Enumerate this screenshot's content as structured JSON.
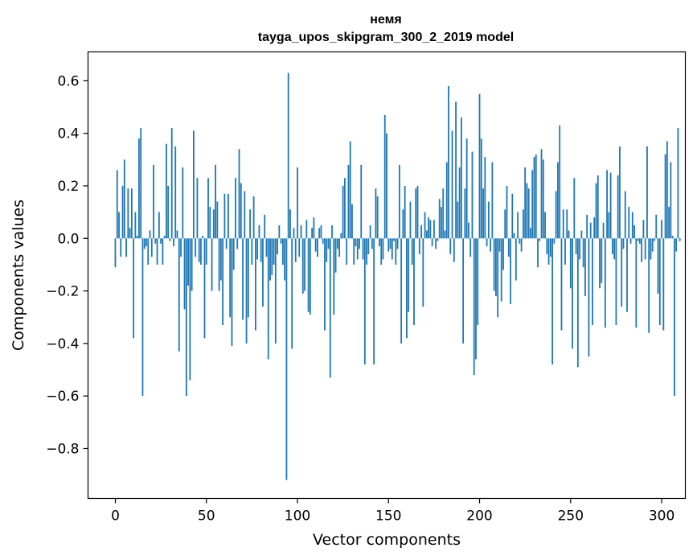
{
  "chart_data": {
    "type": "bar",
    "title_line1": "немя",
    "title_line2": "tayga_upos_skipgram_300_2_2019 model",
    "xlabel": "Vector components",
    "ylabel": "Components values",
    "xlim": [
      -15,
      313
    ],
    "ylim": [
      -0.99,
      0.71
    ],
    "xticks": [
      0,
      50,
      100,
      150,
      200,
      250,
      300
    ],
    "yticks": [
      -0.8,
      -0.6,
      -0.4,
      -0.2,
      0.0,
      0.2,
      0.4,
      0.6
    ],
    "ytick_labels": [
      "−0.8",
      "−0.6",
      "−0.4",
      "−0.2",
      "0.0",
      "0.2",
      "0.4",
      "0.6"
    ],
    "bar_color": "#1f77b4",
    "values": [
      -0.11,
      0.26,
      0.1,
      -0.07,
      0.2,
      0.3,
      -0.07,
      0.19,
      0.04,
      0.19,
      -0.38,
      0.1,
      0.01,
      0.38,
      0.42,
      -0.6,
      -0.04,
      -0.03,
      -0.1,
      0.03,
      -0.07,
      0.28,
      -0.02,
      -0.1,
      0.1,
      -0.02,
      -0.1,
      0.01,
      0.36,
      0.2,
      -0.01,
      0.42,
      -0.03,
      0.35,
      0.03,
      -0.43,
      -0.07,
      0.27,
      -0.27,
      -0.6,
      -0.18,
      -0.54,
      -0.2,
      0.41,
      -0.07,
      0.23,
      -0.09,
      -0.1,
      0.01,
      -0.38,
      -0.1,
      0.23,
      0.12,
      -0.2,
      0.11,
      0.28,
      0.14,
      -0.2,
      -0.16,
      -0.33,
      0.17,
      -0.04,
      0.17,
      -0.3,
      -0.41,
      -0.12,
      0.23,
      -0.04,
      0.34,
      0.21,
      -0.31,
      0.18,
      -0.4,
      -0.3,
      0.11,
      -0.1,
      0.16,
      -0.35,
      -0.08,
      0.05,
      -0.09,
      -0.26,
      0.09,
      -0.07,
      -0.46,
      -0.16,
      -0.14,
      -0.1,
      -0.4,
      -0.06,
      0.05,
      -0.02,
      -0.1,
      -0.16,
      -0.92,
      0.63,
      0.11,
      -0.42,
      0.04,
      -0.09,
      0.27,
      -0.07,
      0.05,
      -0.21,
      -0.2,
      0.07,
      -0.28,
      -0.29,
      0.04,
      0.08,
      -0.05,
      -0.07,
      0.04,
      0.05,
      -0.02,
      -0.35,
      -0.09,
      -0.04,
      -0.53,
      0.05,
      -0.29,
      -0.13,
      -0.04,
      -0.07,
      0.02,
      0.2,
      0.23,
      -0.1,
      0.28,
      0.37,
      0.13,
      -0.1,
      -0.03,
      -0.08,
      -0.04,
      0.28,
      -0.08,
      -0.48,
      -0.1,
      -0.06,
      0.05,
      -0.04,
      -0.48,
      0.19,
      0.16,
      -0.03,
      -0.1,
      -0.08,
      0.47,
      0.4,
      -0.05,
      -0.04,
      -0.08,
      -0.01,
      -0.1,
      -0.04,
      0.28,
      -0.4,
      0.11,
      0.2,
      -0.38,
      -0.28,
      0.14,
      -0.1,
      -0.33,
      0.19,
      0.2,
      -0.06,
      0.05,
      -0.26,
      0.1,
      0.03,
      0.08,
      0.07,
      -0.03,
      0.07,
      -0.04,
      -0.01,
      0.15,
      0.12,
      0.19,
      0.03,
      0.29,
      0.58,
      -0.06,
      0.41,
      -0.09,
      0.52,
      0.14,
      0.27,
      0.46,
      -0.4,
      0.19,
      0.38,
      0.06,
      -0.07,
      0.33,
      -0.52,
      -0.46,
      -0.33,
      0.55,
      0.38,
      0.19,
      0.31,
      -0.03,
      0.14,
      -0.05,
      0.29,
      -0.2,
      -0.22,
      -0.3,
      -0.05,
      -0.24,
      -0.12,
      0.11,
      0.2,
      -0.07,
      -0.25,
      0.17,
      0.02,
      -0.16,
      0.1,
      -0.02,
      -0.05,
      0.11,
      0.27,
      0.21,
      0.19,
      0.04,
      0.26,
      0.31,
      0.32,
      -0.11,
      -0.01,
      0.34,
      0.3,
      0.1,
      -0.06,
      -0.1,
      -0.07,
      -0.48,
      -0.02,
      0.18,
      0.29,
      0.43,
      -0.35,
      0.11,
      -0.1,
      0.11,
      0.03,
      -0.19,
      -0.42,
      0.23,
      -0.06,
      -0.49,
      -0.08,
      0.03,
      -0.11,
      -0.22,
      0.09,
      -0.45,
      0.06,
      -0.33,
      0.08,
      0.21,
      0.24,
      -0.19,
      -0.17,
      0.06,
      -0.34,
      0.26,
      0.1,
      0.25,
      -0.06,
      -0.08,
      -0.33,
      0.24,
      0.35,
      -0.26,
      -0.04,
      0.18,
      -0.28,
      0.12,
      -0.02,
      0.1,
      0.05,
      -0.34,
      -0.01,
      -0.02,
      -0.09,
      0.07,
      -0.08,
      0.35,
      -0.36,
      -0.08,
      -0.05,
      -0.01,
      0.09,
      -0.21,
      -0.33,
      0.07,
      -0.35,
      0.32,
      0.37,
      0.12,
      0.29,
      0.01,
      -0.6,
      -0.05,
      0.42,
      -0.01
    ]
  }
}
